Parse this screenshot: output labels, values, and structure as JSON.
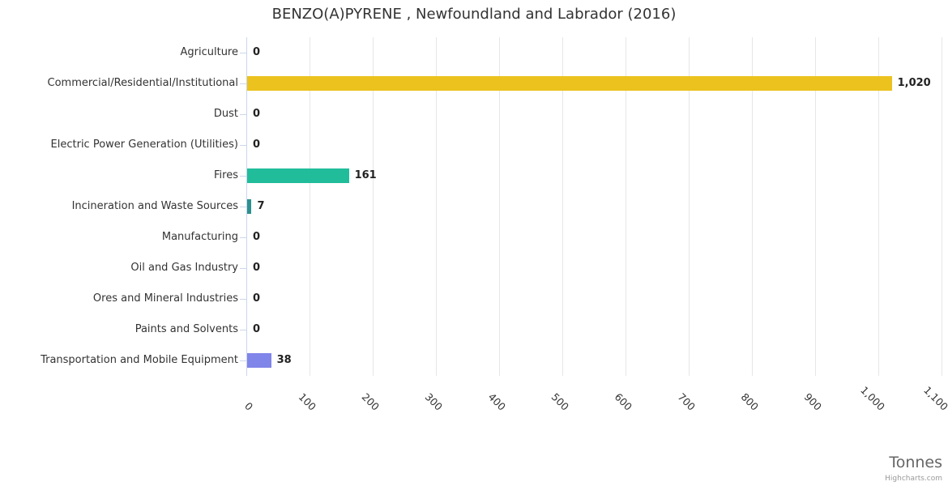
{
  "chart_data": {
    "type": "bar",
    "title": "BENZO(A)PYRENE , Newfoundland and Labrador (2016)",
    "categories": [
      "Agriculture",
      "Commercial/Residential/Institutional",
      "Dust",
      "Electric Power Generation (Utilities)",
      "Fires",
      "Incineration and Waste Sources",
      "Manufacturing",
      "Oil and Gas Industry",
      "Ores and Mineral Industries",
      "Paints and Solvents",
      "Transportation and Mobile Equipment"
    ],
    "values": [
      0,
      1020,
      0,
      0,
      161,
      7,
      0,
      0,
      0,
      0,
      38
    ],
    "value_labels": [
      "0",
      "1,020",
      "0",
      "0",
      "161",
      "7",
      "0",
      "0",
      "0",
      "0",
      "38"
    ],
    "bar_colors": [
      "#7cb5ec",
      "#ecc21e",
      "#434348",
      "#90ed7d",
      "#21bd9b",
      "#2b908f",
      "#f7a35c",
      "#f15c80",
      "#e4d354",
      "#f45b5b",
      "#8085e9"
    ],
    "xlabel": "Tonnes",
    "x_ticks": [
      "0",
      "100",
      "200",
      "300",
      "400",
      "500",
      "600",
      "700",
      "800",
      "900",
      "1,000",
      "1,100"
    ],
    "xlim": [
      0,
      1100
    ],
    "grid": true,
    "legend": false
  },
  "credits": "Highcharts.com",
  "colors": {
    "grid": "#e6e6e6",
    "axis": "#ccd6eb",
    "title_text": "#333333",
    "label_text": "#333333",
    "axis_title_text": "#666666",
    "credits_text": "#999999"
  }
}
